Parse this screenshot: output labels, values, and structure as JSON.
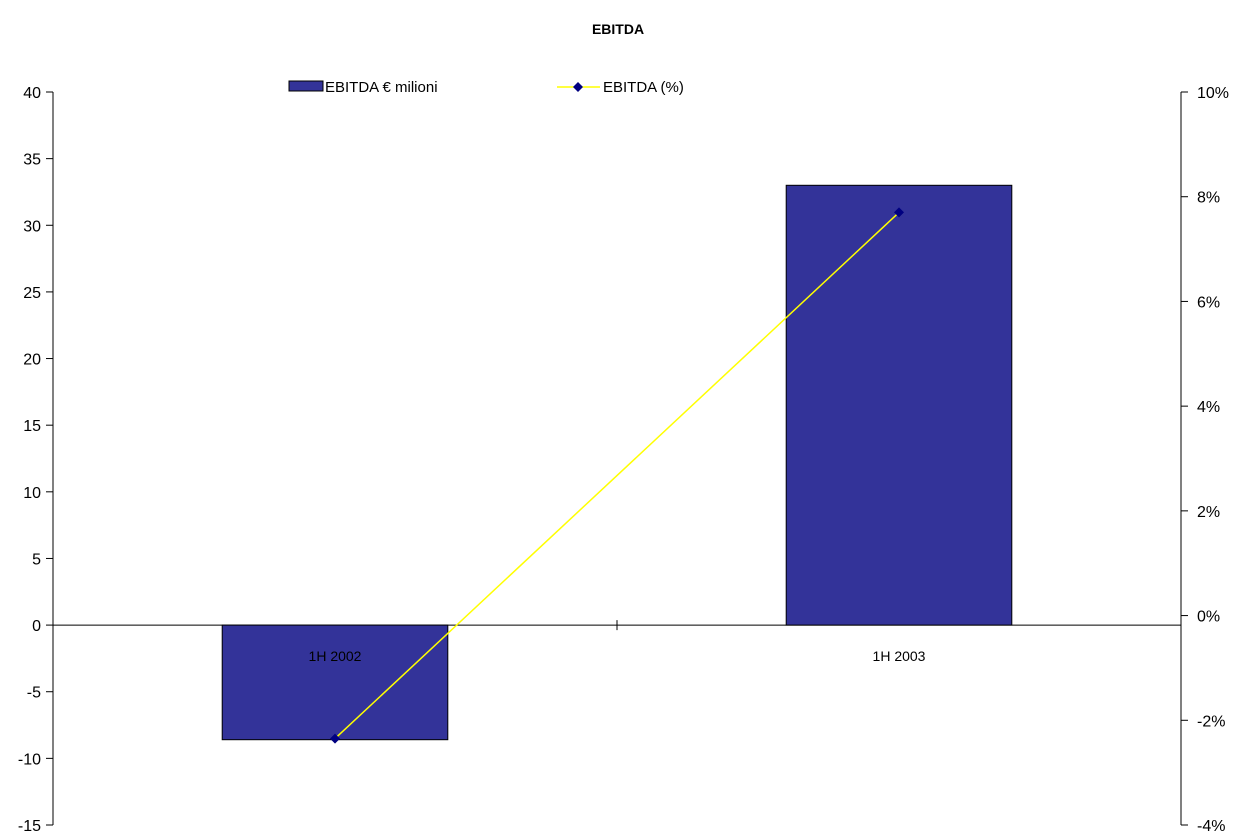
{
  "chart_data": {
    "type": "bar",
    "title": "EBITDA",
    "categories": [
      "1H 2002",
      "1H 2003"
    ],
    "series": [
      {
        "name": "EBITDA € milioni",
        "kind": "bar",
        "axis": "left",
        "values": [
          -8.6,
          33
        ],
        "color": "#333399"
      },
      {
        "name": "EBITDA (%)",
        "kind": "line",
        "axis": "right",
        "values": [
          -0.0235,
          0.077
        ],
        "color": "#ffff00",
        "marker_color": "#000080"
      }
    ],
    "y_left": {
      "min": -15,
      "max": 40,
      "step": 5,
      "tick_labels": [
        "-15",
        "-10",
        "-5",
        "0",
        "5",
        "10",
        "15",
        "20",
        "25",
        "30",
        "35",
        "40"
      ]
    },
    "y_right": {
      "min": -0.04,
      "max": 0.1,
      "step": 0.02,
      "tick_labels": [
        "-4%",
        "-2%",
        "0%",
        "2%",
        "4%",
        "6%",
        "8%",
        "10%"
      ]
    },
    "legend_position": "top",
    "grid": false
  }
}
